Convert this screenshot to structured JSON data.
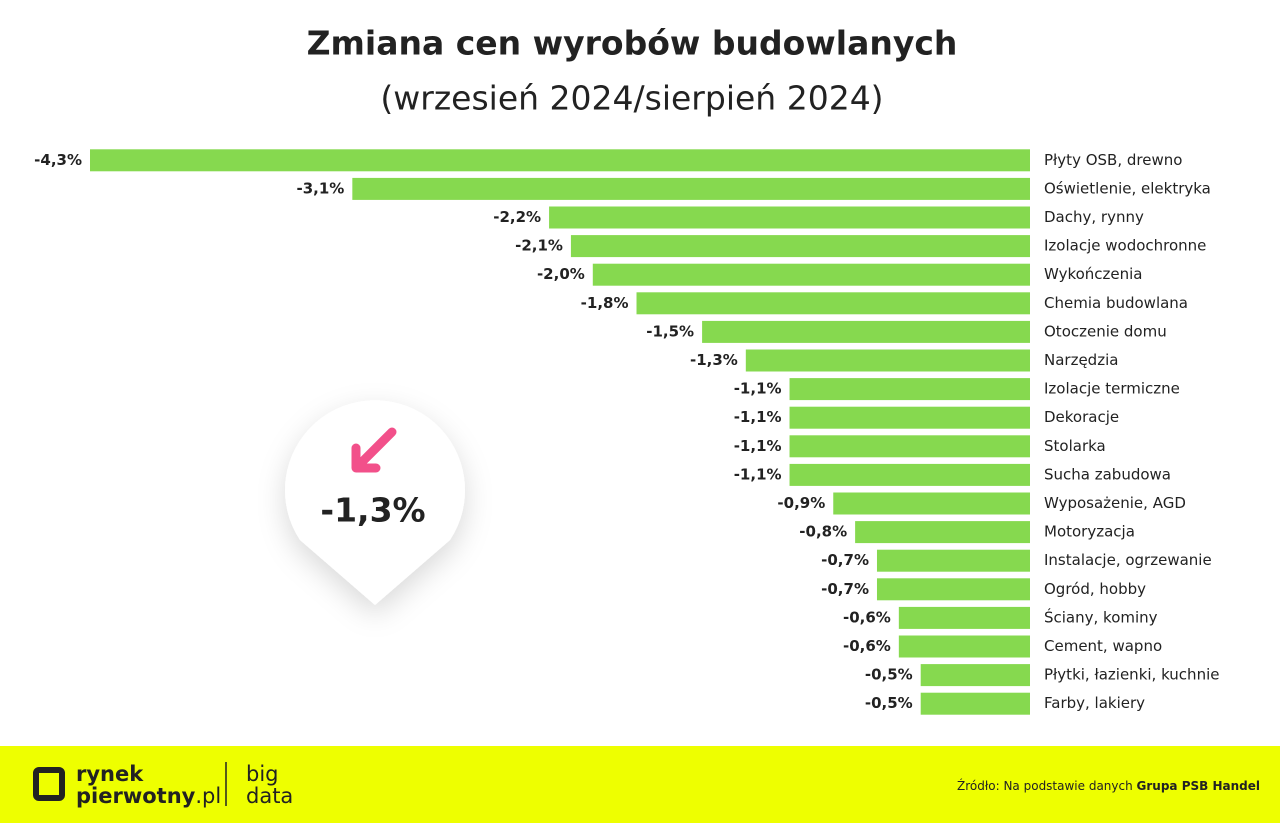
{
  "chart_data": {
    "type": "bar",
    "orientation": "horizontal",
    "title": "Zmiana cen wyrobów budowlanych",
    "subtitle": "(wrzesień 2024/sierpień 2024)",
    "categories": [
      "Płyty OSB, drewno",
      "Oświetlenie, elektryka",
      "Dachy, rynny",
      "Izolacje wodochronne",
      "Wykończenia",
      "Chemia budowlana",
      "Otoczenie domu",
      "Narzędzia",
      "Izolacje termiczne",
      "Dekoracje",
      "Stolarka",
      "Sucha zabudowa",
      "Wyposażenie, AGD",
      "Motoryzacja",
      "Instalacje, ogrzewanie",
      "Ogród, hobby",
      "Ściany, kominy",
      "Cement, wapno",
      "Płytki, łazienki, kuchnie",
      "Farby, lakiery"
    ],
    "values": [
      -4.3,
      -3.1,
      -2.2,
      -2.1,
      -2.0,
      -1.8,
      -1.5,
      -1.3,
      -1.1,
      -1.1,
      -1.1,
      -1.1,
      -0.9,
      -0.8,
      -0.7,
      -0.7,
      -0.6,
      -0.6,
      -0.5,
      -0.5
    ],
    "value_labels": [
      "-4,3%",
      "-3,1%",
      "-2,2%",
      "-2,1%",
      "-2,0%",
      "-1,8%",
      "-1,5%",
      "-1,3%",
      "-1,1%",
      "-1,1%",
      "-1,1%",
      "-1,1%",
      "-0,9%",
      "-0,8%",
      "-0,7%",
      "-0,7%",
      "-0,6%",
      "-0,6%",
      "-0,5%",
      "-0,5%"
    ],
    "color": "#86d94f",
    "callout": {
      "value": -1.3,
      "label": "-1,3%"
    }
  },
  "footer": {
    "brand_line1": "rynek",
    "brand_line2": "pierwotny",
    "brand_suffix": ".pl",
    "product_line1": "big",
    "product_line2": "data",
    "source_prefix": "Źródło: Na podstawie danych ",
    "source_name": "Grupa PSB Handel"
  }
}
